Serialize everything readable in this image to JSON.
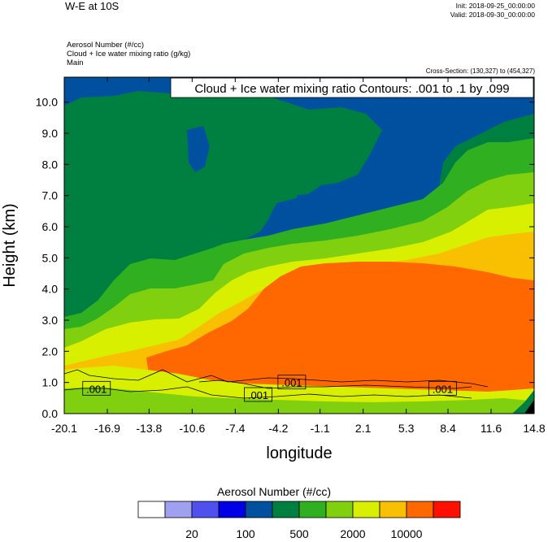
{
  "header": {
    "title": "W-E at 10S",
    "init": "Init: 2018-09-25_00:00:00",
    "valid": "Valid: 2018-09-30_00:00:00",
    "fields": [
      "Aerosol Number   (#/cc)",
      "Cloud + Ice water mixing ratio   (g/kg)",
      "Main"
    ],
    "cross_section": "Cross-Section: (130,327) to (454,327)"
  },
  "chart_data": {
    "type": "heatmap",
    "xlabel": "longitude",
    "ylabel": "Height (km)",
    "xlim": [
      -20.1,
      14.8
    ],
    "ylim": [
      0.0,
      10.8
    ],
    "x_ticks": [
      "-20.1",
      "-16.9",
      "-13.8",
      "-10.6",
      "-7.4",
      "-4.2",
      "-1.1",
      "2.1",
      "5.3",
      "8.4",
      "11.6",
      "14.8"
    ],
    "y_ticks": [
      "0.0",
      "1.0",
      "2.0",
      "3.0",
      "4.0",
      "5.0",
      "6.0",
      "7.0",
      "8.0",
      "9.0",
      "10.0"
    ],
    "contour_info": "Cloud + Ice water mixing ratio Contours: .001 to .1 by .099",
    "contour_labels": [
      {
        "label": ".001",
        "lon": -17.7,
        "height": 0.8
      },
      {
        "label": ".001",
        "lon": -5.7,
        "height": 0.6
      },
      {
        "label": ".001",
        "lon": -3.2,
        "height": 1.0
      },
      {
        "label": ".001",
        "lon": 8.0,
        "height": 0.8
      }
    ],
    "colorbar": {
      "title": "Aerosol Number  (#/cc)",
      "colors": [
        "#ffffff",
        "#a0a0f0",
        "#5050ee",
        "#0000e6",
        "#0050a0",
        "#008040",
        "#30b020",
        "#80d010",
        "#d8f000",
        "#f8c000",
        "#ff6800",
        "#ff1000"
      ],
      "tick_labels": [
        "20",
        "100",
        "500",
        "2000",
        "10000"
      ]
    }
  }
}
